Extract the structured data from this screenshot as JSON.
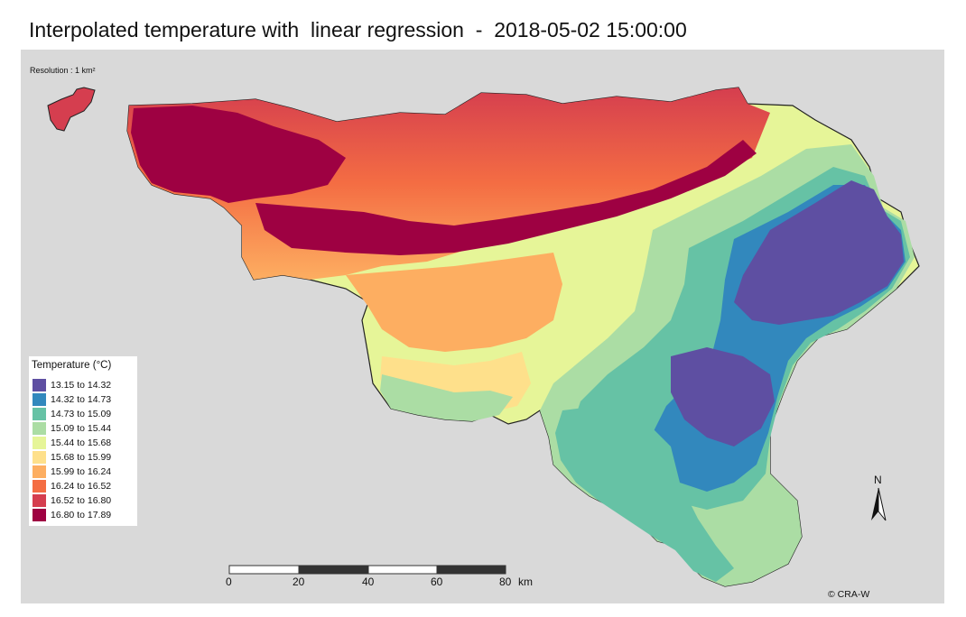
{
  "title": "Interpolated temperature with  linear regression  -  2018-05-02 15:00:00",
  "resolution": "Resolution : 1 km²",
  "legend": {
    "title": "Temperature (°C)",
    "items": [
      {
        "label": "13.15 to 14.32",
        "color": "#5e4fa2"
      },
      {
        "label": "14.32 to 14.73",
        "color": "#3288bd"
      },
      {
        "label": "14.73 to 15.09",
        "color": "#66c2a5"
      },
      {
        "label": "15.09 to 15.44",
        "color": "#abdda4"
      },
      {
        "label": "15.44 to 15.68",
        "color": "#e6f598"
      },
      {
        "label": "15.68 to 15.99",
        "color": "#fee08b"
      },
      {
        "label": "15.99 to 16.24",
        "color": "#fdae61"
      },
      {
        "label": "16.24 to 16.52",
        "color": "#f46d43"
      },
      {
        "label": "16.52 to 16.80",
        "color": "#d53e4f"
      },
      {
        "label": "16.80 to 17.89",
        "color": "#9e0142"
      }
    ]
  },
  "scale_bar": {
    "ticks": [
      "0",
      "20",
      "40",
      "60",
      "80"
    ],
    "unit": "km"
  },
  "north_arrow": {
    "label": "N"
  },
  "credit": "© CRA-W"
}
